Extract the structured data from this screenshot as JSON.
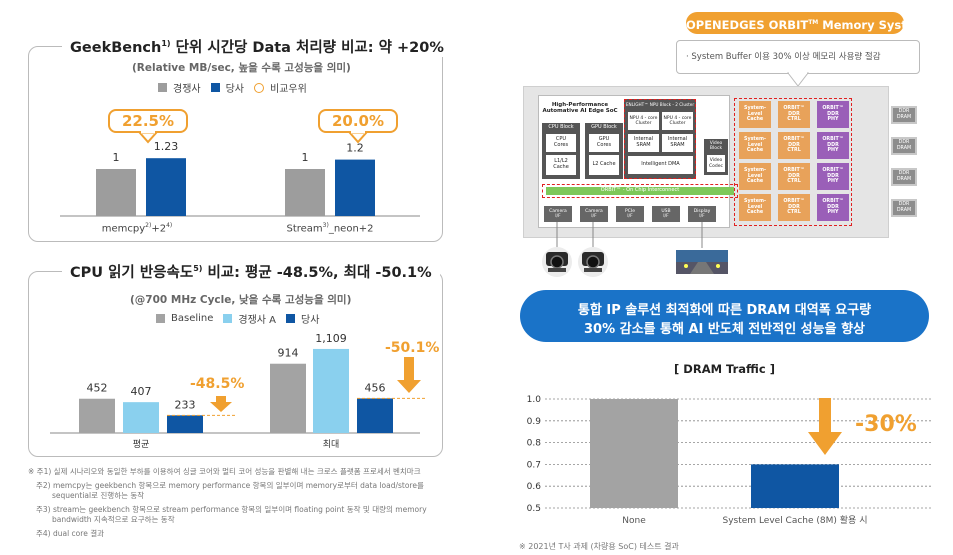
{
  "left": {
    "geek": {
      "title_main": "GeekBench",
      "title_sup": "1)",
      "title_rest": " 단위 시간당 Data 처리량 비교: 약 +20%",
      "subtitle": "(Relative MB/sec, 높을 수록 고성능을 의미)",
      "legend": [
        "경쟁사",
        "당사",
        "비교우위"
      ],
      "badges": [
        "22.5%",
        "20.0%"
      ],
      "groups": [
        {
          "label": "memcpy",
          "sup1": "2)",
          "mid": "+2",
          "sup2": "4)"
        },
        {
          "label": "Stream",
          "sup1": "3)",
          "mid": "_neon+2",
          "sup2": ""
        }
      ]
    },
    "cpu": {
      "title_main": "CPU 읽기 반응속도",
      "title_sup": "5)",
      "title_rest": " 비교: 평균 -48.5%, 최대 -50.1%",
      "subtitle": "(@700 MHz Cycle, 낮을 수록 고성능을 의미)",
      "legend": [
        "Baseline",
        "경쟁사 A",
        "당사"
      ],
      "deltas": [
        "-48.5%",
        "-50.1%"
      ]
    },
    "notes": [
      "※ 주1) 실제 시나리오와 동일한 부하를 이용하여 싱글 코어와 멀티 코어 성능을 판별해 내는 크로스 플랫폼 프로세서 벤치마크",
      "주2) memcpy는 geekbench 항목으로 memory performance 항목의 일부이며 memory로부터 data load/store를",
      "sequential로 진행하는 동작",
      "주3) stream는 geekbench 항목으로 stream performance 항목의 일부이며 floating point 동작 및 대량의 memory",
      "bandwidth 지속적으로 요구하는 동작",
      "주4) dual core 결과"
    ]
  },
  "right": {
    "banner_title": "OPENEDGES ORBIT",
    "banner_tm": "TM",
    "banner_rest": " Memory System",
    "banner_text": "· System Buffer 이용 30% 이상 메모리 사용량 절감",
    "soc": {
      "title": "High-Performance\nAutomative AI Edge SoC",
      "cpu_block": "CPU Block",
      "cpu_cores": "CPU\nCores",
      "l1l2": "L1/L2\nCache",
      "gpu_block": "GPU Block",
      "gpu_cores": "GPU\nCores",
      "l2": "L2 Cache",
      "npu_title": "ENLIGHT™ NPU Block - 2 Cluster",
      "npu_cluster": "NPU 4 - core\nCluster",
      "sram": "Internal\nSRAM",
      "dma": "Intelligent DMA",
      "video_block": "Video\nBlock",
      "video_codec": "Video\nCodec",
      "noc": "ORBIT™ - On Chip Interconnect",
      "ifs": [
        "Camera\nI/F",
        "Camera\nI/F",
        "PCIe\nI/F",
        "USB\nI/F",
        "Display\nI/F"
      ],
      "slc": "System-\nLevel\nCache",
      "ctrl": "ORBIT™\nDDR\nCTRL",
      "phy": "ORBIT™\nDDR\nPHY",
      "dram": "DDR\nDRAM"
    },
    "headline": [
      "통합 IP 솔루션 최적화에 따른 DRAM 대역폭 요구량",
      "30% 감소를 통해 AI 반도체 전반적인 성능을 향상"
    ],
    "traffic_title": "[ DRAM Traffic ]",
    "traffic_delta": "-30%",
    "footnote": "※ 2021년 T사 과제 (차량용 SoC) 테스트 결과"
  },
  "colors": {
    "competitor": "#9d9d9d",
    "ours": "#0f56a3",
    "baseline": "#a3a3a3",
    "compA": "#8ad0ee",
    "accent": "#f0a030",
    "banner": "#1a73c8"
  },
  "chart_data": [
    {
      "type": "bar",
      "categories": [
        "memcpy²⁾+2⁴⁾",
        "Stream³⁾_neon+2"
      ],
      "series": [
        {
          "name": "경쟁사",
          "values": [
            1,
            1
          ]
        },
        {
          "name": "당사",
          "values": [
            1.23,
            1.2
          ]
        }
      ],
      "data_labels": [
        "1",
        "1.23",
        "1",
        "1.2"
      ]
    },
    {
      "type": "bar",
      "categories": [
        "평균",
        "최대"
      ],
      "series": [
        {
          "name": "Baseline",
          "values": [
            452,
            914
          ]
        },
        {
          "name": "경쟁사 A",
          "values": [
            407,
            1109
          ]
        },
        {
          "name": "당사",
          "values": [
            233,
            456
          ]
        }
      ],
      "data_labels": [
        "452",
        "407",
        "233",
        "914",
        "1,109",
        "456"
      ]
    },
    {
      "type": "bar",
      "categories": [
        "None",
        "System Level Cache (8M) 활용 시"
      ],
      "values": [
        1.0,
        0.7
      ],
      "ylim": [
        0.5,
        1.0
      ],
      "yticks": [
        "1.0",
        "0.9",
        "0.8",
        "0.7",
        "0.6",
        "0.5"
      ]
    }
  ]
}
